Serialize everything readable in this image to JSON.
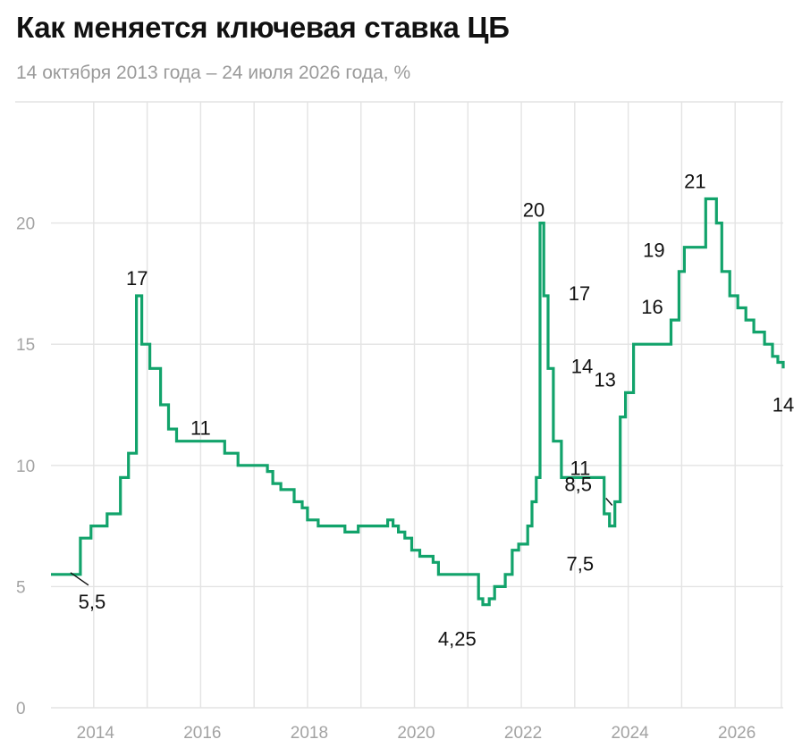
{
  "title": "Как меняется ключевая ставка ЦБ",
  "subtitle": "14 октября 2013 года – 24 июля 2026 года, %",
  "chart_data": {
    "type": "line",
    "step": true,
    "color": "#12a36b",
    "grid": true,
    "xlim": [
      2013.2,
      2026.9
    ],
    "ylim": [
      0,
      25
    ],
    "y_ticks": [
      0,
      5,
      10,
      15,
      20
    ],
    "y_tick_labels": [
      "0",
      "5",
      "10",
      "15",
      "20"
    ],
    "x_ticks": [
      2014,
      2016,
      2018,
      2020,
      2022,
      2024,
      2026
    ],
    "x_tick_labels": [
      "2014",
      "2016",
      "2018",
      "2020",
      "2022",
      "2024",
      "2026"
    ],
    "series": [
      {
        "x": [
          2013.2,
          2013.6,
          2013.75,
          2013.95,
          2014.25,
          2014.5,
          2014.65,
          2014.8,
          2014.82,
          2014.9,
          2015.05,
          2015.25,
          2015.4,
          2015.55,
          2016.45,
          2016.7,
          2017.25,
          2017.35,
          2017.5,
          2017.75,
          2017.9,
          2018.0,
          2018.2,
          2018.7,
          2018.95,
          2019.5,
          2019.6,
          2019.7,
          2019.82,
          2019.95,
          2020.1,
          2020.35,
          2020.45,
          2021.2,
          2021.28,
          2021.4,
          2021.5,
          2021.7,
          2021.83,
          2021.95,
          2022.12,
          2022.2,
          2022.28,
          2022.35,
          2022.42,
          2022.5,
          2022.6,
          2022.75,
          2023.55,
          2023.65,
          2023.75,
          2023.85,
          2023.95,
          2024.1,
          2024.8,
          2024.95,
          2025.05,
          2025.45,
          2025.65,
          2025.75,
          2025.9,
          2026.05,
          2026.2,
          2026.35,
          2026.55,
          2026.7,
          2026.8,
          2026.9
        ],
        "y": [
          5.5,
          5.5,
          7.0,
          7.5,
          8.0,
          9.5,
          10.5,
          17.0,
          17.0,
          15.0,
          14.0,
          12.5,
          11.5,
          11.0,
          10.5,
          10.0,
          9.75,
          9.25,
          9.0,
          8.5,
          8.25,
          7.75,
          7.5,
          7.25,
          7.5,
          7.75,
          7.5,
          7.25,
          7.0,
          6.5,
          6.25,
          6.0,
          5.5,
          4.5,
          4.25,
          4.5,
          5.0,
          5.5,
          6.5,
          6.75,
          7.5,
          8.5,
          9.5,
          20.0,
          17.0,
          14.0,
          11.0,
          9.5,
          8.0,
          7.5,
          8.5,
          12.0,
          13.0,
          15.0,
          16.0,
          18.0,
          19.0,
          21.0,
          20.0,
          18.0,
          17.0,
          16.5,
          16.0,
          15.5,
          15.0,
          14.5,
          14.25,
          14.0
        ]
      }
    ],
    "annotations": [
      {
        "text": "5,5",
        "x": 2013.6,
        "y": 5.5
      },
      {
        "text": "17",
        "x": 2014.81,
        "y": 17.0
      },
      {
        "text": "11",
        "x": 2016.0,
        "y": 11.0
      },
      {
        "text": "4,25",
        "x": 2020.8,
        "y": 4.25
      },
      {
        "text": "20",
        "x": 2022.4,
        "y": 20.0
      },
      {
        "text": "17",
        "x": 2022.5,
        "y": 17.0
      },
      {
        "text": "14",
        "x": 2022.55,
        "y": 14.0
      },
      {
        "text": "11",
        "x": 2022.6,
        "y": 11.0
      },
      {
        "text": "7,5",
        "x": 2023.1,
        "y": 7.5
      },
      {
        "text": "8,5",
        "x": 2023.6,
        "y": 8.5
      },
      {
        "text": "13",
        "x": 2023.9,
        "y": 13.0
      },
      {
        "text": "16",
        "x": 2024.45,
        "y": 16.0
      },
      {
        "text": "19",
        "x": 2024.95,
        "y": 19.0
      },
      {
        "text": "21",
        "x": 2025.25,
        "y": 21.0
      },
      {
        "text": "14",
        "x": 2026.9,
        "y": 14.0
      }
    ]
  }
}
